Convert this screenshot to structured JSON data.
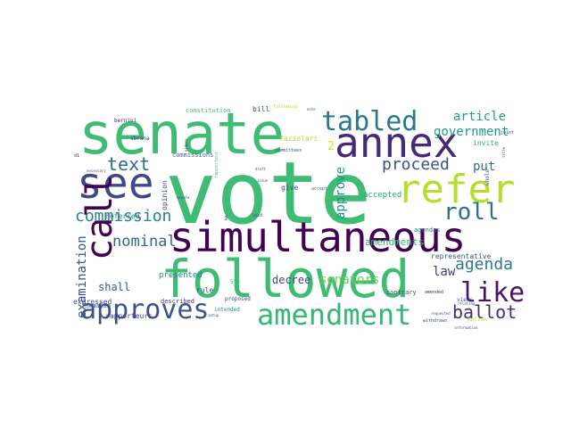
{
  "words": [
    {
      "text": "vote",
      "color": "#3fbc73"
    },
    {
      "text": "senate",
      "color": "#3fbc73"
    },
    {
      "text": "followed",
      "color": "#3fbc73"
    },
    {
      "text": "simultaneous",
      "color": "#440154"
    },
    {
      "text": "annex",
      "color": "#482878"
    },
    {
      "text": "see",
      "color": "#3e4989"
    },
    {
      "text": "refer",
      "color": "#b5de2b"
    },
    {
      "text": "tabled",
      "color": "#2a788e"
    },
    {
      "text": "amendment",
      "color": "#35b779"
    },
    {
      "text": "approves",
      "color": "#3b528b"
    },
    {
      "text": "call",
      "color": "#440154"
    },
    {
      "text": "like",
      "color": "#481467"
    },
    {
      "text": "roll",
      "color": "#2c718e"
    },
    {
      "text": "commission",
      "color": "#26828e"
    },
    {
      "text": "text",
      "color": "#31688e"
    },
    {
      "text": "ballot",
      "color": "#472c7a"
    },
    {
      "text": "proceed",
      "color": "#3b528b"
    },
    {
      "text": "agenda",
      "color": "#2a788e"
    },
    {
      "text": "article",
      "color": "#1f9e89"
    },
    {
      "text": "government",
      "color": "#1f9e89"
    },
    {
      "text": "nominal",
      "color": "#31688e"
    },
    {
      "text": "approve",
      "color": "#21918c"
    },
    {
      "text": "senators",
      "color": "#6ece58"
    },
    {
      "text": "examination",
      "color": "#3b528b"
    },
    {
      "text": "law",
      "color": "#443a83"
    },
    {
      "text": "put",
      "color": "#2e6e8e"
    },
    {
      "text": "amendments",
      "color": "#35b779"
    },
    {
      "text": "decree",
      "color": "#414487"
    },
    {
      "text": "shall",
      "color": "#38588c"
    },
    {
      "text": "accepted",
      "color": "#20a486"
    },
    {
      "text": "representative",
      "color": "#3b528b"
    },
    {
      "text": "invite",
      "color": "#2db27d"
    },
    {
      "text": "agendas",
      "color": "#2f6c8e"
    },
    {
      "text": "presented",
      "color": "#228c8d"
    },
    {
      "text": "expressed",
      "color": "#3e4a89"
    },
    {
      "text": "described",
      "color": "#46337e"
    },
    {
      "text": "rapporteurs",
      "color": "#424086"
    },
    {
      "text": "rule",
      "color": "#3e4989"
    },
    {
      "text": "commissions",
      "color": "#31688e"
    },
    {
      "text": "constitution",
      "color": "#3fbc73"
    },
    {
      "text": "bill",
      "color": "#3b528b"
    },
    {
      "text": "following",
      "color": "#c2df23"
    },
    {
      "text": "fazzolari",
      "color": "#a8db34"
    },
    {
      "text": "intended",
      "color": "#21918c"
    },
    {
      "text": "proposed",
      "color": "#3e4989"
    },
    {
      "text": "give",
      "color": "#3e4989"
    },
    {
      "text": "referred",
      "color": "#27808e"
    },
    {
      "text": "opinion",
      "color": "#3e4989"
    },
    {
      "text": "bernini",
      "color": "#482475"
    },
    {
      "text": "sbrana",
      "color": "#443983"
    },
    {
      "text": "malan",
      "color": "#3e4989"
    },
    {
      "text": "contrary",
      "color": "#3b528b"
    },
    {
      "text": "views",
      "color": "#3b528b"
    },
    {
      "text": "2",
      "color": "#d8e219"
    },
    {
      "text": "3",
      "color": "#3e4989"
    },
    {
      "text": "5th",
      "color": "#35b779"
    },
    {
      "text": "laid",
      "color": "#3e4989"
    },
    {
      "text": "rapporteur",
      "color": "#4ac16d"
    },
    {
      "text": "committees",
      "color": "#3b528b"
    },
    {
      "text": "accept",
      "color": "#2a788e"
    },
    {
      "text": "whole",
      "color": "#3b528b"
    },
    {
      "text": "joint",
      "color": "#3e4989"
    },
    {
      "text": "amended",
      "color": "#482878"
    },
    {
      "text": "motion",
      "color": "#b5de2b"
    },
    {
      "text": "withdrawn",
      "color": "#3e4989"
    },
    {
      "text": "requested",
      "color": "#3b528b"
    },
    {
      "text": "relating",
      "color": "#3e4989"
    },
    {
      "text": "information",
      "color": "#3b528b"
    },
    {
      "text": "title",
      "color": "#3e4989"
    },
    {
      "text": "note",
      "color": "#3b528b"
    },
    {
      "text": "orders",
      "color": "#482878"
    },
    {
      "text": "draft",
      "color": "#3b528b"
    },
    {
      "text": "setup",
      "color": "#3e4989"
    },
    {
      "text": "speed",
      "color": "#3b528b"
    },
    {
      "text": "issue",
      "color": "#3e4989"
    },
    {
      "text": "necessary",
      "color": "#3b528b"
    },
    {
      "text": "senate",
      "color": "#3e4989"
    },
    {
      "text": "d1",
      "color": "#482878"
    }
  ]
}
